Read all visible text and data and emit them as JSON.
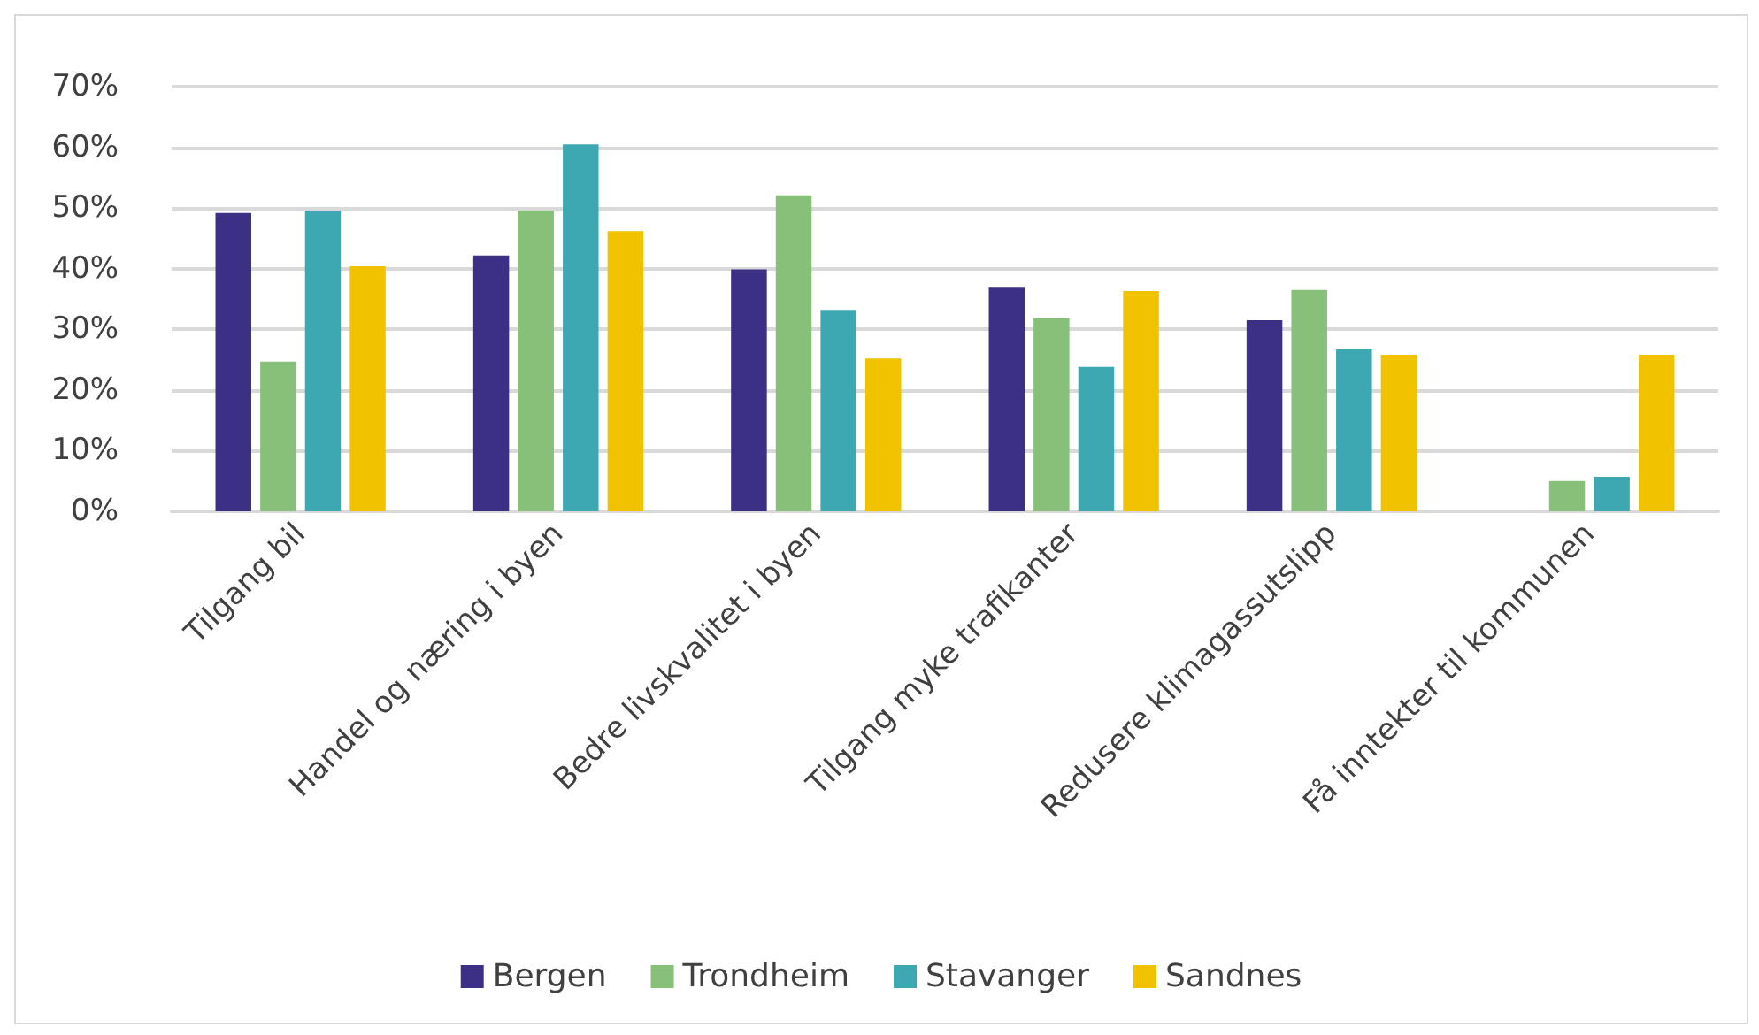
{
  "chart_data": {
    "type": "bar",
    "categories": [
      "Tilgang bil",
      "Handel og næring i byen",
      "Bedre livskvalitet i byen",
      "Tilgang myke trafikanter",
      "Redusere klimagassutslipp",
      "Få inntekter til kommunen"
    ],
    "series": [
      {
        "name": "Bergen",
        "color": "#3c2f86",
        "values": [
          49.2,
          42.2,
          39.9,
          37.0,
          31.5,
          null
        ]
      },
      {
        "name": "Trondheim",
        "color": "#86c079",
        "values": [
          24.7,
          49.6,
          52.1,
          31.8,
          36.5,
          5.0
        ]
      },
      {
        "name": "Stavanger",
        "color": "#3ea8b2",
        "values": [
          49.6,
          60.5,
          33.2,
          23.8,
          26.7,
          5.7
        ]
      },
      {
        "name": "Sandnes",
        "color": "#f0c200",
        "values": [
          40.4,
          46.2,
          25.2,
          36.3,
          25.8,
          25.8
        ]
      }
    ],
    "ylim": [
      0,
      70
    ],
    "yticks": [
      {
        "value": 0,
        "label": "0%"
      },
      {
        "value": 10,
        "label": "10%"
      },
      {
        "value": 20,
        "label": "20%"
      },
      {
        "value": 30,
        "label": "30%"
      },
      {
        "value": 40,
        "label": "40%"
      },
      {
        "value": 50,
        "label": "50%"
      },
      {
        "value": 60,
        "label": "60%"
      },
      {
        "value": 70,
        "label": "70%"
      }
    ],
    "grid": "y",
    "legend": "bottom"
  }
}
